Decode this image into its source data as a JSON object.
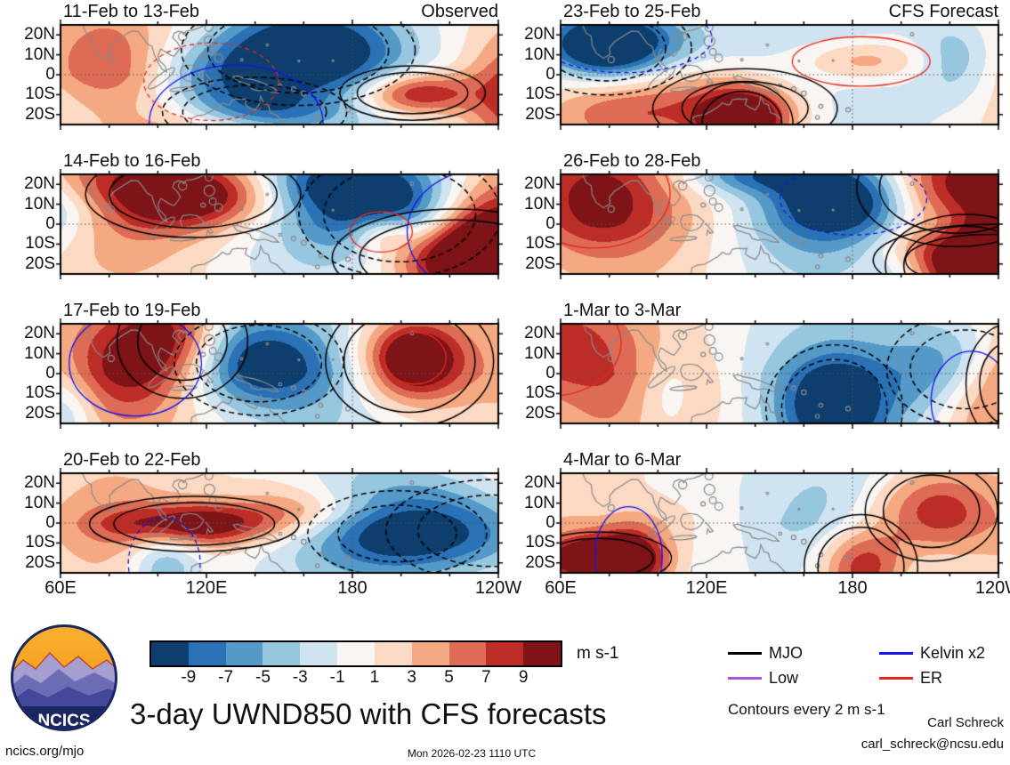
{
  "title": "3-day UWND850 with CFS forecasts",
  "logo": {
    "text": "NCICS"
  },
  "footer": {
    "site": "ncics.org/mjo",
    "timestamp": "Mon 2026-02-23 1110 UTC",
    "credit_name": "Carl Schreck",
    "credit_email": "carl_schreck@ncsu.edu"
  },
  "chart_data": {
    "type": "heatmap",
    "title": "3-day UWND850 with CFS forecasts",
    "description": "Eight longitude-latitude map panels of 3-day mean 850-hPa zonal wind anomalies; left column observed, right column CFS forecast, with wave-filtered contour overlays (MJO, Kelvin, Low, ER).",
    "variable": "UWND850 anomaly",
    "column_headings": [
      "Observed",
      "CFS Forecast"
    ],
    "panels": [
      {
        "title": "11-Feb to 13-Feb",
        "column": "Observed",
        "seed": 3
      },
      {
        "title": "14-Feb to 16-Feb",
        "column": "Observed",
        "seed": 7
      },
      {
        "title": "17-Feb to 19-Feb",
        "column": "Observed",
        "seed": 12
      },
      {
        "title": "20-Feb to 22-Feb",
        "column": "Observed",
        "seed": 21
      },
      {
        "title": "23-Feb to 25-Feb",
        "column": "CFS Forecast",
        "seed": 33
      },
      {
        "title": "26-Feb to 28-Feb",
        "column": "CFS Forecast",
        "seed": 47
      },
      {
        "title": "1-Mar to 3-Mar",
        "column": "CFS Forecast",
        "seed": 58
      },
      {
        "title": "4-Mar to 6-Mar",
        "column": "CFS Forecast",
        "seed": 71
      }
    ],
    "x_axis": {
      "ticks": [
        "60E",
        "120E",
        "180",
        "120W"
      ],
      "range_deg": [
        60,
        240
      ]
    },
    "y_axis": {
      "ticks": [
        "20N",
        "10N",
        "0",
        "10S",
        "20S"
      ],
      "range_deg": [
        -25,
        25
      ]
    },
    "shading_levels": [
      "-9",
      "-7",
      "-5",
      "-3",
      "-1",
      "1",
      "3",
      "5",
      "7",
      "9"
    ],
    "shading_colors": [
      "#0d3e6e",
      "#2a72b5",
      "#5499c7",
      "#97c6df",
      "#cfe3f0",
      "#f8f5f2",
      "#fbd9c3",
      "#f5a982",
      "#de6b55",
      "#bd2d27",
      "#7e1418"
    ],
    "units_label": "m s-1",
    "contour_note": "Contours every 2 m s-1",
    "legend": [
      {
        "label": "MJO",
        "color": "#000000"
      },
      {
        "label": "Kelvin x2",
        "color": "#1414f0"
      },
      {
        "label": "Low",
        "color": "#a855e0"
      },
      {
        "label": "ER",
        "color": "#e6281e"
      }
    ]
  }
}
